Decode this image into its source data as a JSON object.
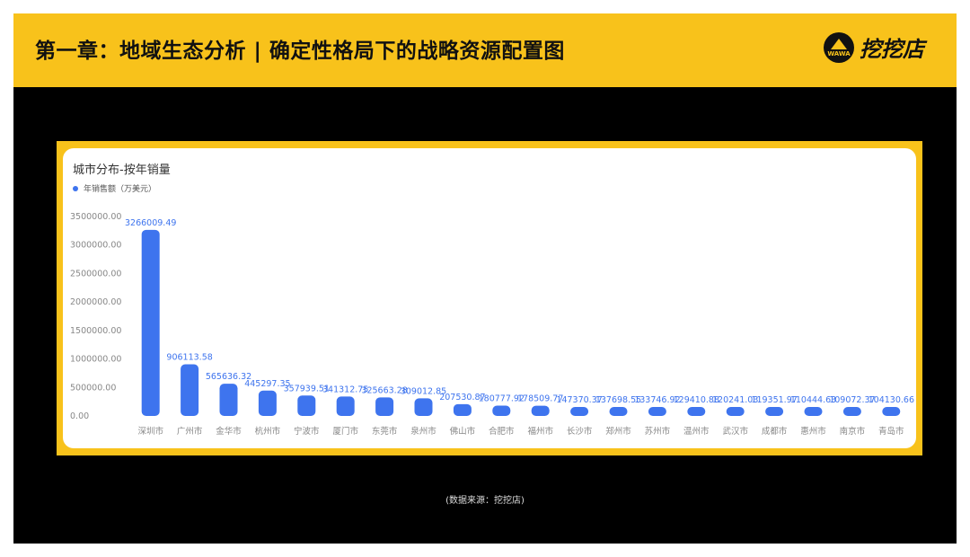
{
  "header": {
    "title": "第一章：地域生态分析 | 确定性格局下的战略资源配置图",
    "logo_text": "挖挖店",
    "logo_mark_text": "WAWA"
  },
  "footer": {
    "source": "(数据来源：挖挖店)"
  },
  "colors": {
    "accent": "#f8c21b",
    "bar": "#3e74ee",
    "background": "#000000"
  },
  "chart_data": {
    "type": "bar",
    "title": "城市分布-按年销量",
    "legend_position": "top-left",
    "grid": false,
    "ylim": [
      0,
      3500000
    ],
    "yticks": [
      "0.00",
      "500000.00",
      "1000000.00",
      "1500000.00",
      "2000000.00",
      "2500000.00",
      "3000000.00",
      "3500000.00"
    ],
    "categories": [
      "深圳市",
      "广州市",
      "金华市",
      "杭州市",
      "宁波市",
      "厦门市",
      "东莞市",
      "泉州市",
      "佛山市",
      "合肥市",
      "福州市",
      "长沙市",
      "郑州市",
      "苏州市",
      "温州市",
      "武汉市",
      "成都市",
      "惠州市",
      "南京市",
      "青岛市"
    ],
    "series": [
      {
        "name": "年销售额（万美元）",
        "values": [
          3266009.49,
          906113.58,
          565636.32,
          445297.35,
          357939.51,
          341312.75,
          325663.28,
          309012.85,
          207530.87,
          180777.92,
          178509.77,
          147370.37,
          137698.55,
          133746.92,
          129410.88,
          120241.03,
          119351.97,
          110444.63,
          109072.37,
          104130.66
        ],
        "labels": [
          "3266009.49",
          "906113.58",
          "565636.32",
          "445297.35",
          "357939.51",
          "341312.75",
          "325663.28",
          "309012.85",
          "207530.87",
          "180777.92",
          "178509.77",
          "147370.37",
          "137698.55",
          "133746.92",
          "129410.88",
          "120241.03",
          "119351.97",
          "110444.63",
          "109072.37",
          "104130.66"
        ]
      }
    ]
  }
}
